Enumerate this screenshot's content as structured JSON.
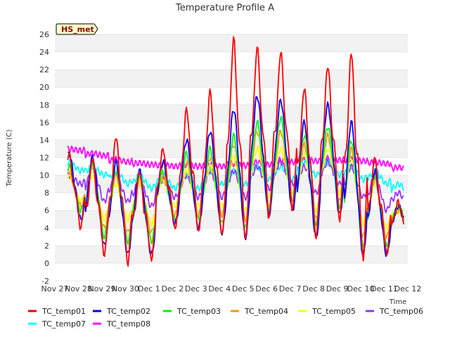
{
  "chart_data": {
    "type": "line",
    "title": "Temperature Profile A",
    "xlabel": "Time",
    "ylabel": "Temperature (C)",
    "badge": "HS_met",
    "ylim": [
      -2,
      26
    ],
    "y_ticks": [
      "-2",
      "0",
      "2",
      "4",
      "6",
      "8",
      "10",
      "12",
      "14",
      "16",
      "18",
      "20",
      "22",
      "24",
      "26"
    ],
    "x_ticks": [
      "Nov 27",
      "Nov 28",
      "Nov 29",
      "Nov 30",
      "Dec 1",
      "Dec 2",
      "Dec 3",
      "Dec 4",
      "Dec 5",
      "Dec 6",
      "Dec 7",
      "Dec 8",
      "Dec 9",
      "Dec 10",
      "Dec 11",
      "Dec 12"
    ],
    "grid": "horizontal bands",
    "legend_position": "bottom",
    "colors": {
      "TC_temp01": "#ff0000",
      "TC_temp02": "#0000ff",
      "TC_temp03": "#00ff00",
      "TC_temp04": "#ff9900",
      "TC_temp05": "#ffff00",
      "TC_temp06": "#9933ff",
      "TC_temp07": "#00ffff",
      "TC_temp08": "#ff00ff"
    },
    "series": [
      {
        "name": "TC_temp01",
        "daily_min": [
          4.0,
          1.0,
          0.0,
          0.5,
          4.0,
          3.5,
          3.0,
          2.5,
          5.0,
          6.0,
          3.0,
          5.0,
          0.5,
          1.0,
          2.5
        ],
        "daily_max": [
          12.5,
          12.0,
          14.5,
          10.5,
          13.0,
          17.5,
          19.5,
          25.5,
          24.5,
          24.0,
          20.0,
          22.5,
          24.0,
          12.0,
          7.0
        ]
      },
      {
        "name": "TC_temp02",
        "daily_min": [
          5.0,
          2.0,
          1.0,
          1.0,
          4.5,
          4.0,
          3.5,
          3.0,
          5.5,
          6.0,
          3.0,
          5.5,
          1.0,
          1.0,
          3.0
        ],
        "daily_max": [
          12.5,
          12.0,
          11.5,
          10.5,
          11.5,
          14.0,
          15.0,
          17.5,
          19.0,
          18.5,
          16.0,
          18.0,
          16.0,
          10.5,
          6.5
        ]
      },
      {
        "name": "TC_temp03",
        "daily_min": [
          6.0,
          3.0,
          2.5,
          2.5,
          5.0,
          5.0,
          4.5,
          4.0,
          6.0,
          6.5,
          4.5,
          6.5,
          2.0,
          2.0,
          3.5
        ],
        "daily_max": [
          11.0,
          11.5,
          10.5,
          10.0,
          10.5,
          12.5,
          13.0,
          14.5,
          16.0,
          16.5,
          14.5,
          15.5,
          14.0,
          10.0,
          6.5
        ]
      },
      {
        "name": "TC_temp04",
        "daily_min": [
          6.5,
          4.0,
          3.5,
          3.5,
          5.5,
          5.5,
          5.5,
          5.0,
          6.5,
          7.0,
          5.0,
          7.0,
          3.0,
          3.0,
          4.0
        ],
        "daily_max": [
          10.5,
          11.0,
          10.0,
          9.5,
          10.0,
          11.5,
          12.0,
          13.5,
          15.0,
          15.0,
          13.5,
          14.5,
          13.0,
          9.5,
          6.0
        ]
      },
      {
        "name": "TC_temp05",
        "daily_min": [
          7.0,
          5.0,
          5.0,
          4.5,
          6.5,
          6.5,
          6.5,
          6.0,
          7.5,
          8.0,
          6.0,
          8.0,
          4.5,
          4.0,
          5.0
        ],
        "daily_max": [
          10.0,
          10.0,
          9.0,
          9.0,
          9.5,
          10.5,
          11.0,
          12.0,
          13.0,
          13.0,
          12.5,
          13.0,
          12.0,
          9.0,
          6.0
        ]
      },
      {
        "name": "TC_temp06",
        "daily_min": [
          9.0,
          7.0,
          7.0,
          6.5,
          7.5,
          7.5,
          7.5,
          7.5,
          8.5,
          9.0,
          8.0,
          9.0,
          7.5,
          6.0,
          6.5
        ],
        "daily_max": [
          10.0,
          11.0,
          10.0,
          9.5,
          9.5,
          10.0,
          10.5,
          10.5,
          11.0,
          11.5,
          11.0,
          11.5,
          11.0,
          10.0,
          8.0
        ]
      },
      {
        "name": "TC_temp07",
        "daily_min": [
          10.5,
          10.0,
          9.0,
          8.5,
          8.5,
          8.5,
          9.0,
          9.0,
          9.5,
          9.5,
          10.0,
          10.0,
          9.5,
          9.0,
          8.0
        ],
        "daily_max": [
          11.5,
          11.0,
          10.5,
          10.0,
          10.0,
          10.0,
          10.5,
          10.5,
          11.0,
          11.0,
          11.5,
          11.5,
          11.0,
          10.5,
          9.0
        ]
      },
      {
        "name": "TC_temp08",
        "daily_min": [
          12.8,
          12.2,
          11.5,
          11.2,
          11.0,
          11.0,
          11.0,
          11.1,
          11.2,
          11.5,
          11.6,
          11.7,
          11.6,
          11.3,
          10.6
        ],
        "daily_max": [
          13.0,
          12.5,
          11.8,
          11.4,
          11.2,
          11.2,
          11.2,
          11.3,
          11.5,
          11.7,
          11.8,
          11.9,
          11.8,
          11.5,
          10.9
        ]
      }
    ]
  }
}
